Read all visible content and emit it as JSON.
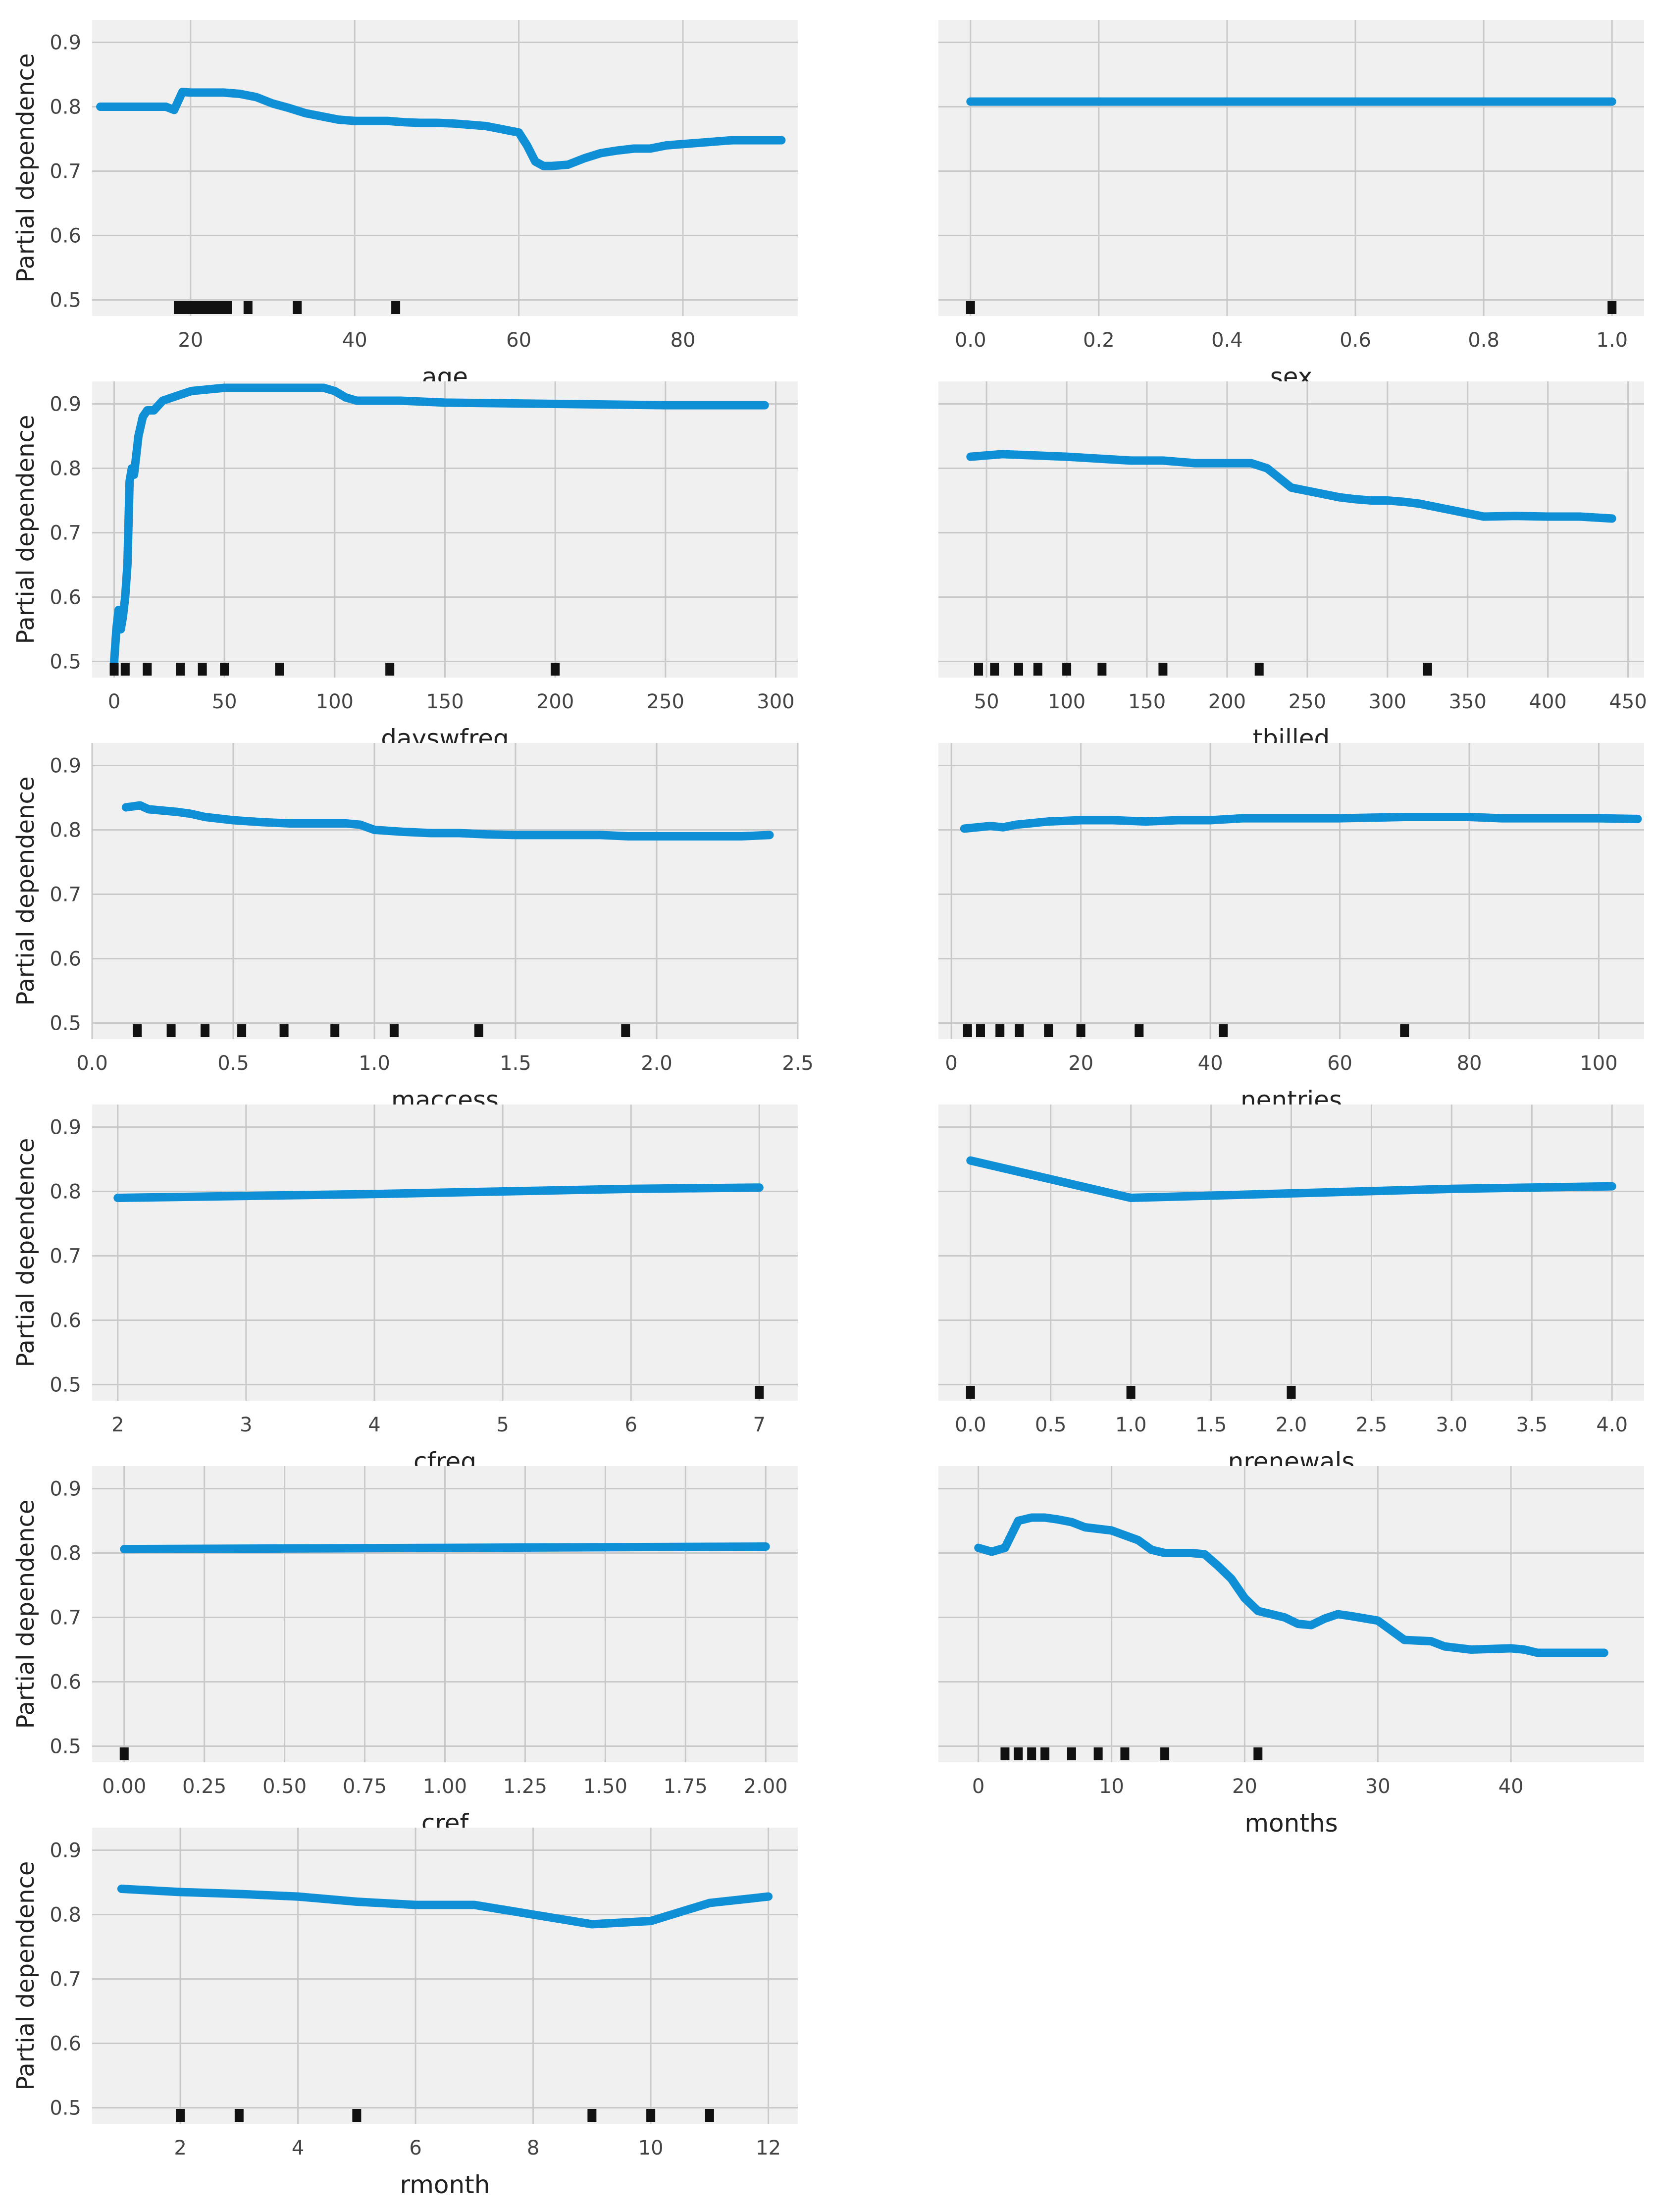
{
  "colors": {
    "line": "#0f8fd6",
    "panel_bg": "#f0f0f0",
    "grid": "#c9c9c9",
    "tick_text": "#444444",
    "label_text": "#222222",
    "rug": "#111111"
  },
  "chart_data": [
    {
      "type": "line",
      "title": "",
      "xlabel": "age",
      "ylabel": "Partial dependence",
      "show_ylabel": true,
      "xlim": [
        8,
        94
      ],
      "ylim": [
        0.475,
        0.935
      ],
      "xticks": [
        20,
        40,
        60,
        80
      ],
      "xtick_labels": [
        "20",
        "40",
        "60",
        "80"
      ],
      "yticks": [
        0.5,
        0.6,
        0.7,
        0.8,
        0.9
      ],
      "ytick_labels": [
        "0.5",
        "0.6",
        "0.7",
        "0.8",
        "0.9"
      ],
      "rug": [
        18.5,
        19.5,
        20.5,
        21.5,
        22.5,
        23.5,
        24.5,
        27,
        33,
        45
      ],
      "x": [
        9,
        10,
        12,
        14,
        16,
        17,
        18,
        19,
        20,
        22,
        24,
        26,
        28,
        30,
        32,
        34,
        36,
        38,
        40,
        42,
        44,
        46,
        48,
        50,
        52,
        54,
        56,
        58,
        60,
        61,
        62,
        63,
        64,
        66,
        68,
        70,
        72,
        74,
        76,
        78,
        80,
        82,
        84,
        86,
        88,
        90,
        92
      ],
      "y": [
        0.8,
        0.8,
        0.8,
        0.8,
        0.8,
        0.8,
        0.795,
        0.823,
        0.822,
        0.822,
        0.822,
        0.82,
        0.815,
        0.805,
        0.798,
        0.79,
        0.785,
        0.78,
        0.778,
        0.778,
        0.778,
        0.776,
        0.775,
        0.775,
        0.774,
        0.772,
        0.77,
        0.765,
        0.76,
        0.74,
        0.715,
        0.708,
        0.708,
        0.71,
        0.72,
        0.728,
        0.732,
        0.735,
        0.735,
        0.74,
        0.742,
        0.744,
        0.746,
        0.748,
        0.748,
        0.748,
        0.748
      ]
    },
    {
      "type": "line",
      "title": "",
      "xlabel": "sex",
      "ylabel": "Partial dependence",
      "show_ylabel": false,
      "xlim": [
        -0.05,
        1.05
      ],
      "ylim": [
        0.475,
        0.935
      ],
      "xticks": [
        0,
        0.2,
        0.4,
        0.6,
        0.8,
        1.0
      ],
      "xtick_labels": [
        "0.0",
        "0.2",
        "0.4",
        "0.6",
        "0.8",
        "1.0"
      ],
      "yticks": [
        0.5,
        0.6,
        0.7,
        0.8,
        0.9
      ],
      "ytick_labels": [],
      "rug": [
        0,
        1
      ],
      "x": [
        0,
        1
      ],
      "y": [
        0.808,
        0.808
      ]
    },
    {
      "type": "line",
      "title": "",
      "xlabel": "dayswfreq",
      "ylabel": "Partial dependence",
      "show_ylabel": true,
      "xlim": [
        -10,
        310
      ],
      "ylim": [
        0.475,
        0.935
      ],
      "xticks": [
        0,
        50,
        100,
        150,
        200,
        250,
        300
      ],
      "xtick_labels": [
        "0",
        "50",
        "100",
        "150",
        "200",
        "250",
        "300"
      ],
      "yticks": [
        0.5,
        0.6,
        0.7,
        0.8,
        0.9
      ],
      "ytick_labels": [
        "0.5",
        "0.6",
        "0.7",
        "0.8",
        "0.9"
      ],
      "rug": [
        0,
        5,
        15,
        30,
        40,
        50,
        75,
        125,
        200
      ],
      "x": [
        0,
        1,
        2,
        3,
        4,
        5,
        6,
        7,
        8,
        9,
        10,
        11,
        13,
        15,
        18,
        22,
        28,
        35,
        50,
        80,
        95,
        100,
        105,
        110,
        130,
        150,
        200,
        250,
        295
      ],
      "y": [
        0.5,
        0.55,
        0.58,
        0.55,
        0.57,
        0.6,
        0.65,
        0.78,
        0.8,
        0.79,
        0.82,
        0.85,
        0.88,
        0.89,
        0.89,
        0.905,
        0.912,
        0.92,
        0.925,
        0.925,
        0.925,
        0.92,
        0.91,
        0.905,
        0.905,
        0.902,
        0.9,
        0.898,
        0.898
      ]
    },
    {
      "type": "line",
      "title": "",
      "xlabel": "tbilled",
      "ylabel": "Partial dependence",
      "show_ylabel": false,
      "xlim": [
        20,
        460
      ],
      "ylim": [
        0.475,
        0.935
      ],
      "xticks": [
        50,
        100,
        150,
        200,
        250,
        300,
        350,
        400,
        450
      ],
      "xtick_labels": [
        "50",
        "100",
        "150",
        "200",
        "250",
        "300",
        "350",
        "400",
        "450"
      ],
      "yticks": [
        0.5,
        0.6,
        0.7,
        0.8,
        0.9
      ],
      "ytick_labels": [],
      "rug": [
        45,
        55,
        70,
        82,
        100,
        122,
        160,
        220,
        325
      ],
      "x": [
        40,
        60,
        80,
        100,
        120,
        140,
        160,
        180,
        200,
        215,
        225,
        230,
        240,
        250,
        260,
        270,
        280,
        290,
        300,
        310,
        320,
        330,
        340,
        350,
        360,
        380,
        400,
        420,
        440
      ],
      "y": [
        0.818,
        0.822,
        0.82,
        0.818,
        0.815,
        0.812,
        0.812,
        0.808,
        0.808,
        0.808,
        0.8,
        0.79,
        0.77,
        0.765,
        0.76,
        0.755,
        0.752,
        0.75,
        0.75,
        0.748,
        0.745,
        0.74,
        0.735,
        0.73,
        0.725,
        0.726,
        0.725,
        0.725,
        0.722
      ]
    },
    {
      "type": "line",
      "title": "",
      "xlabel": "maccess",
      "ylabel": "Partial dependence",
      "show_ylabel": true,
      "xlim": [
        0,
        2.5
      ],
      "ylim": [
        0.475,
        0.935
      ],
      "xticks": [
        0,
        0.5,
        1.0,
        1.5,
        2.0,
        2.5
      ],
      "xtick_labels": [
        "0.0",
        "0.5",
        "1.0",
        "1.5",
        "2.0",
        "2.5"
      ],
      "yticks": [
        0.5,
        0.6,
        0.7,
        0.8,
        0.9
      ],
      "ytick_labels": [
        "0.5",
        "0.6",
        "0.7",
        "0.8",
        "0.9"
      ],
      "rug": [
        0.16,
        0.28,
        0.4,
        0.53,
        0.68,
        0.86,
        1.07,
        1.37,
        1.89
      ],
      "x": [
        0.12,
        0.17,
        0.2,
        0.25,
        0.3,
        0.35,
        0.4,
        0.5,
        0.6,
        0.7,
        0.8,
        0.9,
        0.95,
        1.0,
        1.1,
        1.2,
        1.3,
        1.4,
        1.5,
        1.6,
        1.7,
        1.8,
        1.9,
        2.0,
        2.1,
        2.2,
        2.3,
        2.4
      ],
      "y": [
        0.835,
        0.838,
        0.832,
        0.83,
        0.828,
        0.825,
        0.82,
        0.815,
        0.812,
        0.81,
        0.81,
        0.81,
        0.808,
        0.8,
        0.797,
        0.795,
        0.795,
        0.793,
        0.792,
        0.792,
        0.792,
        0.792,
        0.79,
        0.79,
        0.79,
        0.79,
        0.79,
        0.792
      ]
    },
    {
      "type": "line",
      "title": "",
      "xlabel": "nentries",
      "ylabel": "Partial dependence",
      "show_ylabel": false,
      "xlim": [
        -2,
        107
      ],
      "ylim": [
        0.475,
        0.935
      ],
      "xticks": [
        0,
        20,
        40,
        60,
        80,
        100
      ],
      "xtick_labels": [
        "0",
        "20",
        "40",
        "60",
        "80",
        "100"
      ],
      "yticks": [
        0.5,
        0.6,
        0.7,
        0.8,
        0.9
      ],
      "ytick_labels": [],
      "rug": [
        2.5,
        4.5,
        7.5,
        10.5,
        15,
        20,
        29,
        42,
        70
      ],
      "x": [
        2,
        4,
        6,
        8,
        10,
        12,
        15,
        20,
        25,
        30,
        35,
        40,
        45,
        50,
        55,
        60,
        65,
        70,
        75,
        80,
        85,
        90,
        95,
        100,
        106
      ],
      "y": [
        0.802,
        0.804,
        0.806,
        0.804,
        0.808,
        0.81,
        0.813,
        0.815,
        0.815,
        0.813,
        0.815,
        0.815,
        0.818,
        0.818,
        0.818,
        0.818,
        0.819,
        0.82,
        0.82,
        0.82,
        0.818,
        0.818,
        0.818,
        0.818,
        0.817
      ]
    },
    {
      "type": "line",
      "title": "",
      "xlabel": "cfreq",
      "ylabel": "Partial dependence",
      "show_ylabel": true,
      "xlim": [
        1.8,
        7.3
      ],
      "ylim": [
        0.475,
        0.935
      ],
      "xticks": [
        2,
        3,
        4,
        5,
        6,
        7
      ],
      "xtick_labels": [
        "2",
        "3",
        "4",
        "5",
        "6",
        "7"
      ],
      "yticks": [
        0.5,
        0.6,
        0.7,
        0.8,
        0.9
      ],
      "ytick_labels": [
        "0.5",
        "0.6",
        "0.7",
        "0.8",
        "0.9"
      ],
      "rug": [
        7
      ],
      "x": [
        2,
        3,
        4,
        5,
        6,
        7
      ],
      "y": [
        0.79,
        0.793,
        0.796,
        0.8,
        0.804,
        0.806
      ]
    },
    {
      "type": "line",
      "title": "",
      "xlabel": "nrenewals",
      "ylabel": "Partial dependence",
      "show_ylabel": false,
      "xlim": [
        -0.2,
        4.2
      ],
      "ylim": [
        0.475,
        0.935
      ],
      "xticks": [
        0,
        0.5,
        1.0,
        1.5,
        2.0,
        2.5,
        3.0,
        3.5,
        4.0
      ],
      "xtick_labels": [
        "0.0",
        "0.5",
        "1.0",
        "1.5",
        "2.0",
        "2.5",
        "3.0",
        "3.5",
        "4.0"
      ],
      "yticks": [
        0.5,
        0.6,
        0.7,
        0.8,
        0.9
      ],
      "ytick_labels": [],
      "rug": [
        0,
        1,
        2
      ],
      "x": [
        0,
        1,
        2,
        3,
        4
      ],
      "y": [
        0.848,
        0.79,
        0.797,
        0.804,
        0.808
      ]
    },
    {
      "type": "line",
      "title": "",
      "xlabel": "cref",
      "ylabel": "Partial dependence",
      "show_ylabel": true,
      "xlim": [
        -0.1,
        2.1
      ],
      "ylim": [
        0.475,
        0.935
      ],
      "xticks": [
        0,
        0.25,
        0.5,
        0.75,
        1.0,
        1.25,
        1.5,
        1.75,
        2.0
      ],
      "xtick_labels": [
        "0.00",
        "0.25",
        "0.50",
        "0.75",
        "1.00",
        "1.25",
        "1.50",
        "1.75",
        "2.00"
      ],
      "yticks": [
        0.5,
        0.6,
        0.7,
        0.8,
        0.9
      ],
      "ytick_labels": [
        "0.5",
        "0.6",
        "0.7",
        "0.8",
        "0.9"
      ],
      "rug": [
        0
      ],
      "x": [
        0,
        1,
        2
      ],
      "y": [
        0.806,
        0.808,
        0.81
      ]
    },
    {
      "type": "line",
      "title": "",
      "xlabel": "months",
      "ylabel": "Partial dependence",
      "show_ylabel": false,
      "xlim": [
        -3,
        50
      ],
      "ylim": [
        0.475,
        0.935
      ],
      "xticks": [
        0,
        10,
        20,
        30,
        40
      ],
      "xtick_labels": [
        "0",
        "10",
        "20",
        "30",
        "40"
      ],
      "yticks": [
        0.5,
        0.6,
        0.7,
        0.8,
        0.9
      ],
      "ytick_labels": [],
      "rug": [
        2,
        3,
        4,
        5,
        7,
        9,
        11,
        14,
        21
      ],
      "x": [
        0,
        1,
        2,
        3,
        4,
        5,
        6,
        7,
        8,
        10,
        12,
        13,
        14,
        15,
        16,
        17,
        18,
        19,
        20,
        21,
        22,
        23,
        24,
        25,
        26,
        27,
        28,
        30,
        31,
        32,
        34,
        35,
        37,
        40,
        41,
        42,
        44,
        47
      ],
      "y": [
        0.808,
        0.802,
        0.808,
        0.85,
        0.855,
        0.855,
        0.852,
        0.848,
        0.84,
        0.835,
        0.82,
        0.805,
        0.8,
        0.8,
        0.8,
        0.798,
        0.78,
        0.76,
        0.73,
        0.71,
        0.705,
        0.7,
        0.69,
        0.688,
        0.698,
        0.705,
        0.702,
        0.695,
        0.68,
        0.665,
        0.663,
        0.655,
        0.65,
        0.652,
        0.65,
        0.645,
        0.645,
        0.645
      ]
    },
    {
      "type": "line",
      "title": "",
      "xlabel": "rmonth",
      "ylabel": "Partial dependence",
      "show_ylabel": true,
      "xlim": [
        0.5,
        12.5
      ],
      "ylim": [
        0.475,
        0.935
      ],
      "xticks": [
        2,
        4,
        6,
        8,
        10,
        12
      ],
      "xtick_labels": [
        "2",
        "4",
        "6",
        "8",
        "10",
        "12"
      ],
      "yticks": [
        0.5,
        0.6,
        0.7,
        0.8,
        0.9
      ],
      "ytick_labels": [
        "0.5",
        "0.6",
        "0.7",
        "0.8",
        "0.9"
      ],
      "rug": [
        2,
        3,
        5,
        9,
        10,
        11
      ],
      "x": [
        1,
        2,
        3,
        4,
        5,
        6,
        7,
        8,
        9,
        10,
        11,
        12
      ],
      "y": [
        0.84,
        0.835,
        0.832,
        0.828,
        0.82,
        0.815,
        0.815,
        0.8,
        0.785,
        0.79,
        0.818,
        0.828
      ]
    }
  ]
}
